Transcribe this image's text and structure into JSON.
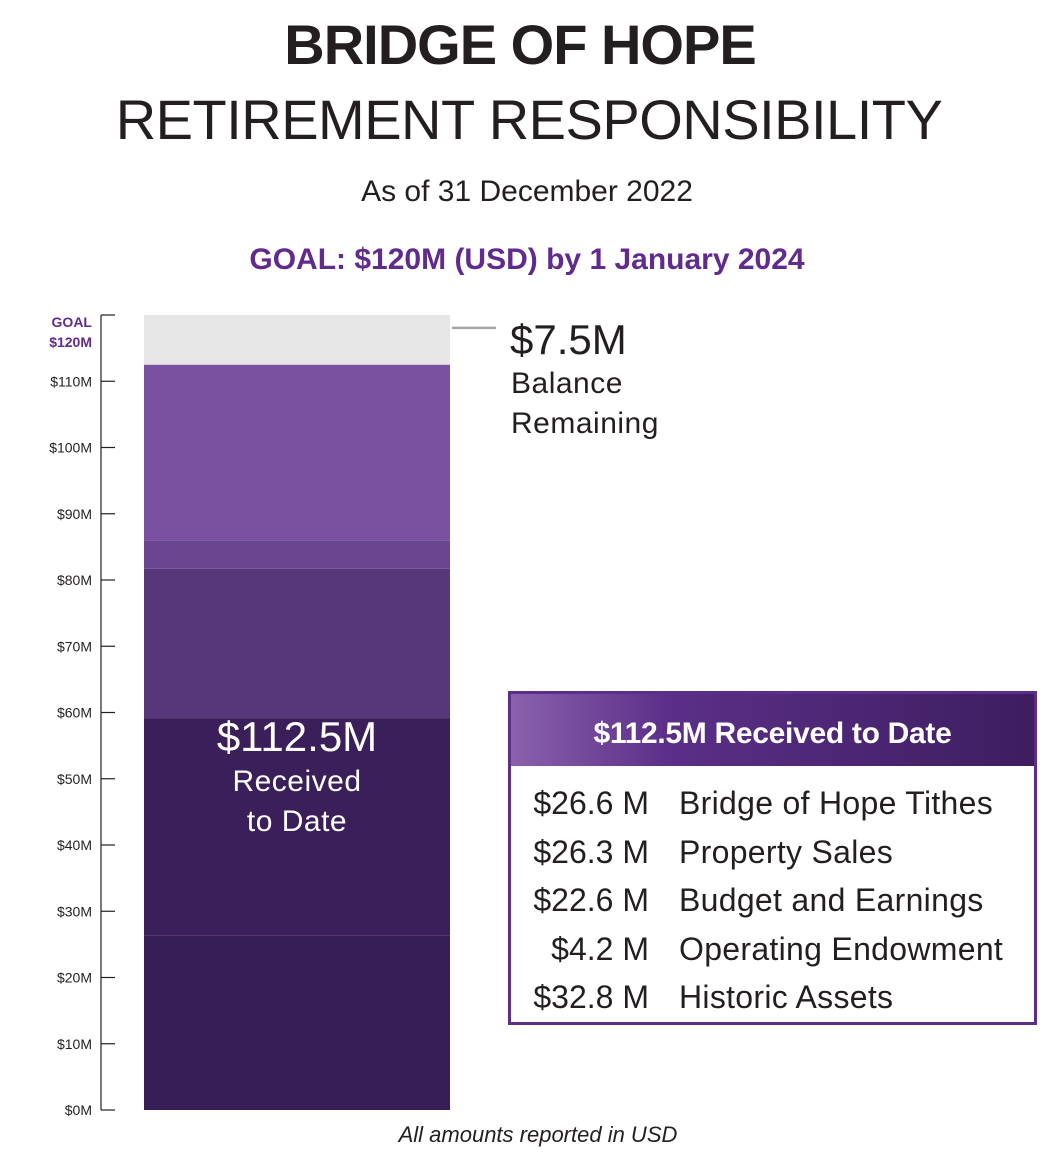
{
  "header": {
    "title": "BRIDGE OF HOPE",
    "subtitle": "RETIREMENT RESPONSIBILITY",
    "as_of": "As of 31 December 2022",
    "goal": "GOAL:  $120M (USD) by 1 January 2024"
  },
  "chart_data": {
    "type": "bar",
    "orientation": "vertical",
    "stacked": true,
    "title": "BRIDGE OF HOPE RETIREMENT RESPONSIBILITY",
    "ylabel": "",
    "ylim": [
      0,
      120
    ],
    "unit": "$M",
    "goal_tick_label": [
      "GOAL",
      "$120M"
    ],
    "y_ticks": [
      {
        "value": 0,
        "label": "$0M"
      },
      {
        "value": 10,
        "label": "$10M"
      },
      {
        "value": 20,
        "label": "$20M"
      },
      {
        "value": 30,
        "label": "$30M"
      },
      {
        "value": 40,
        "label": "$40M"
      },
      {
        "value": 50,
        "label": "$50M"
      },
      {
        "value": 60,
        "label": "$60M"
      },
      {
        "value": 70,
        "label": "$70M"
      },
      {
        "value": 80,
        "label": "$80M"
      },
      {
        "value": 90,
        "label": "$90M"
      },
      {
        "value": 100,
        "label": "$100M"
      },
      {
        "value": 110,
        "label": "$110M"
      }
    ],
    "segments": [
      {
        "name": "Bridge of Hope Tithes",
        "value": 26.6,
        "color": "#7a51a0"
      },
      {
        "name": "Property Sales",
        "value": 26.3,
        "color": "#381e57"
      },
      {
        "name": "Budget and Earnings",
        "value": 22.6,
        "color": "#57367a"
      },
      {
        "name": "Operating Endowment",
        "value": 4.2,
        "color": "#6a4690"
      },
      {
        "name": "Historic Assets",
        "value": 32.8,
        "color": "#3a1f5b"
      },
      {
        "name": "Balance Remaining",
        "value": 7.5,
        "color": "#e6e6e6"
      }
    ],
    "stack_order_bottom_to_top": [
      "Property Sales",
      "Historic Assets",
      "Budget and Earnings",
      "Operating Endowment",
      "Bridge of Hope Tithes",
      "Balance Remaining"
    ],
    "total_received": 112.5,
    "goal": 120
  },
  "annotations": {
    "balance_value": "$7.5M",
    "balance_label": "Balance Remaining",
    "received_value": "$112.5M",
    "received_label": "Received to Date"
  },
  "breakdown": {
    "header": "$112.5M Received to Date",
    "rows": [
      {
        "amount": "$26.6 M",
        "label": "Bridge of Hope Tithes"
      },
      {
        "amount": "$26.3 M",
        "label": "Property Sales"
      },
      {
        "amount": "$22.6 M",
        "label": "Budget and Earnings"
      },
      {
        "amount": "$4.2 M",
        "label": "Operating Endowment"
      },
      {
        "amount": "$32.8 M",
        "label": "Historic Assets"
      }
    ]
  },
  "footnote": "All amounts reported in USD"
}
